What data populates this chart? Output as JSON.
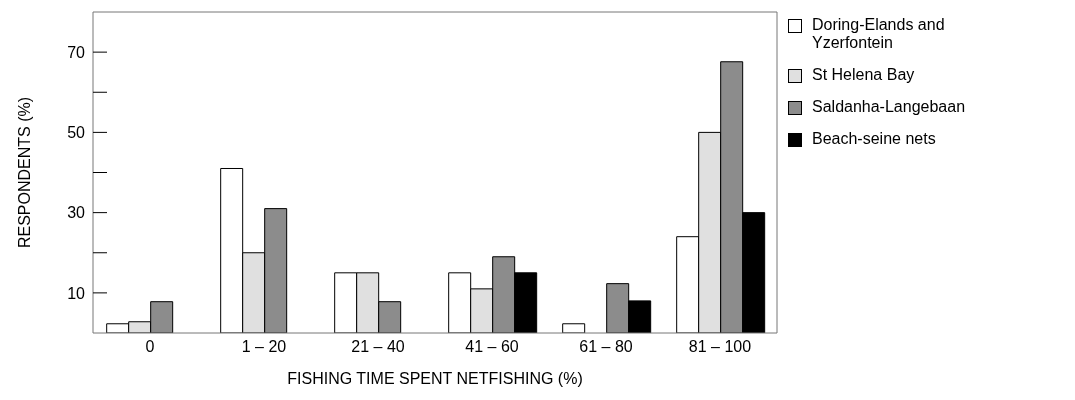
{
  "chart_data": {
    "type": "bar",
    "xlabel": "FISHING TIME SPENT NETFISHING (%)",
    "ylabel": "RESPONDENTS (%)",
    "categories": [
      "0",
      "1 – 20",
      "21 – 40",
      "41 – 60",
      "61 – 80",
      "81 – 100"
    ],
    "series": [
      {
        "name": "Doring-Elands and Yzerfontein",
        "color": "#ffffff",
        "values": [
          2.3,
          41,
          15,
          15,
          2.3,
          24
        ]
      },
      {
        "name": "St Helena Bay",
        "color": "#e0e0e0",
        "values": [
          2.8,
          20,
          15,
          11,
          null,
          50
        ]
      },
      {
        "name": "Saldanha-Langebaan",
        "color": "#8c8c8c",
        "values": [
          7.8,
          31,
          7.8,
          19,
          12.3,
          67.6
        ]
      },
      {
        "name": "Beach-seine nets",
        "color": "#000000",
        "values": [
          null,
          null,
          null,
          15,
          8,
          30
        ]
      }
    ],
    "ylim": [
      0,
      80
    ],
    "yticks": [
      10,
      {
        "value": 20,
        "label": null
      },
      30,
      {
        "value": 40,
        "label": null
      },
      50,
      {
        "value": 60,
        "label": null
      },
      70
    ],
    "legend": "right"
  }
}
